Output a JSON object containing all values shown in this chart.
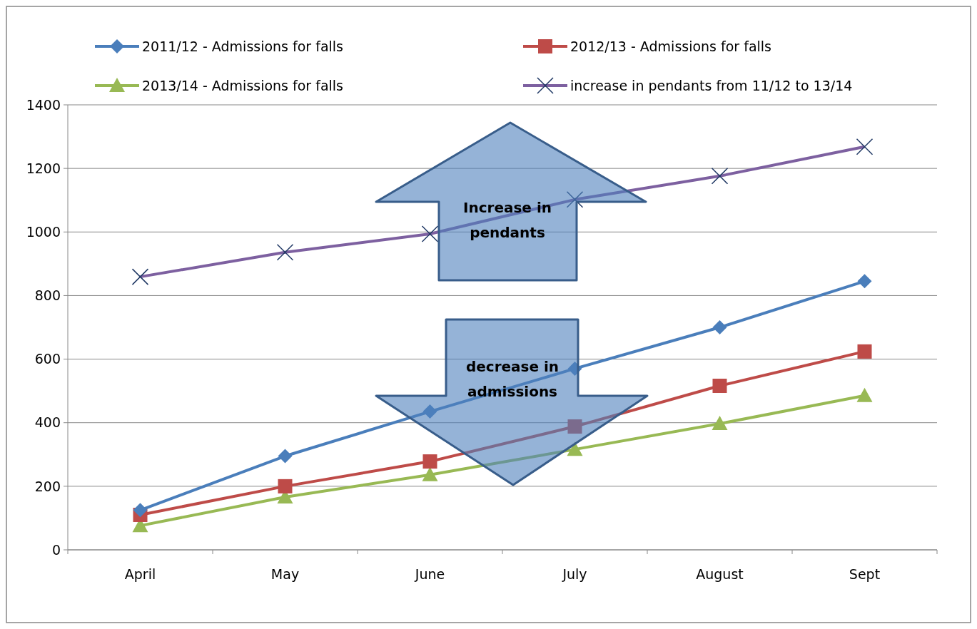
{
  "chart_data": {
    "type": "line",
    "categories": [
      "April",
      "May",
      "June",
      "July",
      "August",
      "Sept"
    ],
    "ylim": [
      0,
      1400
    ],
    "yticks": [
      0,
      200,
      400,
      600,
      800,
      1000,
      1200,
      1400
    ],
    "grid": "y",
    "legend": "top",
    "series": [
      {
        "name": "2011/12 - Admissions for falls",
        "color": "#4a7ebb",
        "marker": "diamond",
        "values": [
          125,
          295,
          435,
          570,
          700,
          845
        ]
      },
      {
        "name": "2012/13 - Admissions for falls",
        "color": "#be4b48",
        "marker": "square",
        "values": [
          110,
          200,
          278,
          388,
          516,
          624
        ]
      },
      {
        "name": "2013/14 - Admissions for falls",
        "color": "#98b954",
        "marker": "triangle",
        "values": [
          76,
          166,
          236,
          316,
          397,
          485
        ]
      },
      {
        "name": "increase in pendants from 11/12 to 13/14",
        "color": "#7d60a0",
        "marker": "cross",
        "values": [
          859,
          936,
          994,
          1102,
          1176,
          1268
        ]
      }
    ],
    "annotations": [
      "Increase in pendants",
      "decrease in admissions"
    ]
  }
}
